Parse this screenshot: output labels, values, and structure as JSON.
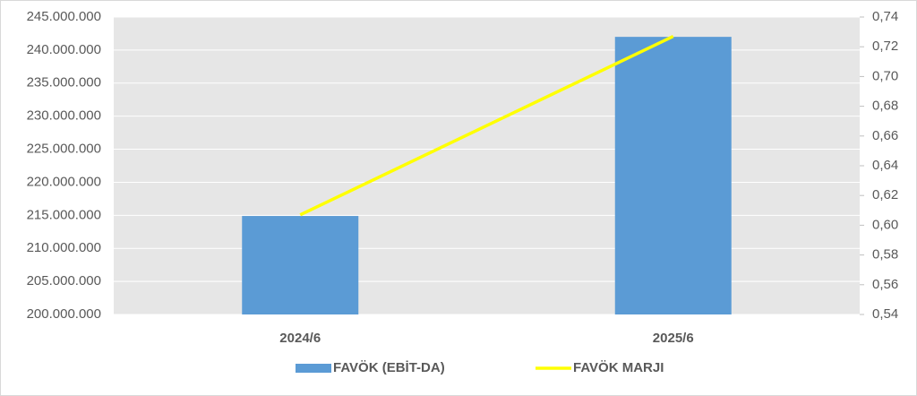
{
  "chart_data": {
    "type": "bar",
    "categories": [
      "2024/6",
      "2025/6"
    ],
    "series": [
      {
        "name": "FAVÖK (EBİT-DA)",
        "color": "#5b9bd5",
        "type": "bar",
        "values": [
          214900000,
          242000000
        ]
      },
      {
        "name": "FAVÖK MARJI",
        "color": "#ffff00",
        "type": "line",
        "axis": "y2",
        "values": [
          0.607,
          0.727
        ]
      }
    ],
    "ylim": [
      200000000,
      245000000
    ],
    "yticks": [
      {
        "value": 200000000,
        "label": "200.000.000"
      },
      {
        "value": 205000000,
        "label": "205.000.000"
      },
      {
        "value": 210000000,
        "label": "210.000.000"
      },
      {
        "value": 215000000,
        "label": "215.000.000"
      },
      {
        "value": 220000000,
        "label": "220.000.000"
      },
      {
        "value": 225000000,
        "label": "225.000.000"
      },
      {
        "value": 230000000,
        "label": "230.000.000"
      },
      {
        "value": 235000000,
        "label": "235.000.000"
      },
      {
        "value": 240000000,
        "label": "240.000.000"
      },
      {
        "value": 245000000,
        "label": "245.000.000"
      }
    ],
    "y2lim": [
      0.54,
      0.74
    ],
    "y2ticks": [
      {
        "value": 0.54,
        "label": "0,54"
      },
      {
        "value": 0.56,
        "label": "0,56"
      },
      {
        "value": 0.58,
        "label": "0,58"
      },
      {
        "value": 0.6,
        "label": "0,60"
      },
      {
        "value": 0.62,
        "label": "0,62"
      },
      {
        "value": 0.64,
        "label": "0,64"
      },
      {
        "value": 0.66,
        "label": "0,66"
      },
      {
        "value": 0.68,
        "label": "0,68"
      },
      {
        "value": 0.7,
        "label": "0,70"
      },
      {
        "value": 0.72,
        "label": "0,72"
      },
      {
        "value": 0.74,
        "label": "0,74"
      }
    ],
    "grid": true,
    "legend": "bottom"
  }
}
